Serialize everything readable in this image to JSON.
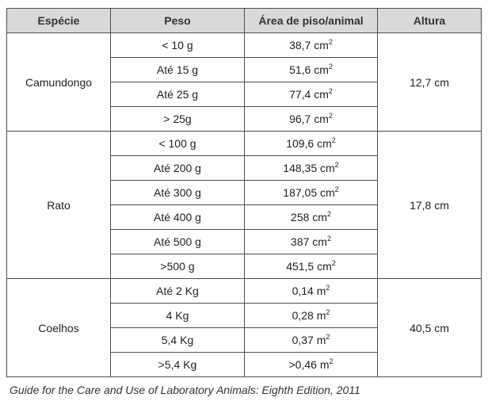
{
  "table": {
    "headers": {
      "especie": "Espécie",
      "peso": "Peso",
      "area": "Área de piso/animal",
      "altura": "Altura"
    },
    "groups": [
      {
        "especie": "Camundongo",
        "altura": "12,7 cm",
        "rows": [
          {
            "peso": "< 10 g",
            "area": "38,7 cm",
            "exp": "2"
          },
          {
            "peso": "Até 15 g",
            "area": "51,6 cm",
            "exp": "2"
          },
          {
            "peso": "Até 25 g",
            "area": "77,4 cm",
            "exp": "2"
          },
          {
            "peso": "> 25g",
            "area": "96,7 cm",
            "exp": "2"
          }
        ]
      },
      {
        "especie": "Rato",
        "altura": "17,8 cm",
        "rows": [
          {
            "peso": "< 100 g",
            "area": "109,6 cm",
            "exp": "2"
          },
          {
            "peso": "Até 200 g",
            "area": "148,35 cm",
            "exp": "2"
          },
          {
            "peso": "Até 300 g",
            "area": "187,05 cm",
            "exp": "2"
          },
          {
            "peso": "Até 400 g",
            "area": "258 cm",
            "exp": "2"
          },
          {
            "peso": "Até 500 g",
            "area": "387 cm",
            "exp": "2"
          },
          {
            "peso": ">500 g",
            "area": "451,5 cm",
            "exp": "2"
          }
        ]
      },
      {
        "especie": "Coelhos",
        "altura": "40,5 cm",
        "rows": [
          {
            "peso": "Até 2 Kg",
            "area": "0,14 m",
            "exp": "2"
          },
          {
            "peso": "4 Kg",
            "area": "0,28 m",
            "exp": "2"
          },
          {
            "peso": "5,4 Kg",
            "area": "0,37 m",
            "exp": "2"
          },
          {
            "peso": ">5,4 Kg",
            "area": ">0,46 m",
            "exp": "2"
          }
        ]
      }
    ]
  },
  "caption": "Guide for the Care and Use of Laboratory Animals: Eighth Edition, 2011"
}
